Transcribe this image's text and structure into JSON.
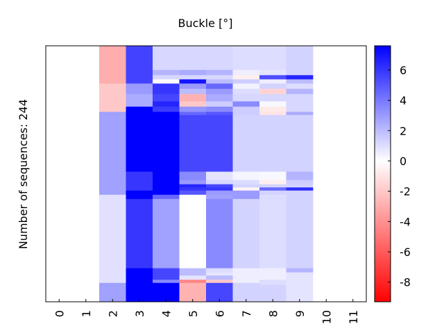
{
  "chart_data": {
    "type": "heatmap",
    "title": "Buckle [°]",
    "ylabel": "Number of sequences: 244",
    "xlabel": "",
    "x_ticks": [
      "0",
      "1",
      "2",
      "3",
      "4",
      "5",
      "6",
      "7",
      "8",
      "9",
      "10",
      "11"
    ],
    "colorbar": {
      "ticks": [
        6,
        4,
        2,
        0,
        -2,
        -4,
        -6,
        -8
      ],
      "tick_labels": [
        "6",
        "4",
        "2",
        "0",
        "-2",
        "-4",
        "-6",
        "-8"
      ],
      "vmin": -9.3,
      "vmax": 7.6,
      "cmap": "bwr",
      "low_color": "#ff0000",
      "mid_color": "#ffffff",
      "high_color": "#0000ff"
    },
    "row_labels": "not shown",
    "bands": [
      {
        "from": 0,
        "to": 244,
        "values": [
          null,
          null,
          0,
          0,
          0,
          0,
          0,
          0,
          0,
          0,
          null,
          null
        ]
      },
      {
        "from": 0,
        "to": 23,
        "values": [
          null,
          null,
          -3.0,
          5.6,
          1.2,
          1.2,
          1.2,
          1.0,
          1.0,
          1.3,
          null,
          null
        ]
      },
      {
        "from": 23,
        "to": 28,
        "values": [
          null,
          null,
          -3.0,
          5.6,
          2.2,
          2.5,
          2.2,
          0.5,
          0.8,
          1.3,
          null,
          null
        ]
      },
      {
        "from": 28,
        "to": 32,
        "values": [
          null,
          null,
          -3.0,
          5.6,
          1.2,
          1.2,
          1.2,
          -0.6,
          5.3,
          6.5,
          null,
          null
        ]
      },
      {
        "from": 32,
        "to": 36,
        "values": [
          null,
          null,
          -3.0,
          5.6,
          0.1,
          7.0,
          2.0,
          1.5,
          0.5,
          2.0,
          null,
          null
        ]
      },
      {
        "from": 36,
        "to": 41,
        "values": [
          null,
          null,
          -2.0,
          3.0,
          6.0,
          3.0,
          4.5,
          0.4,
          1.3,
          1.0,
          null,
          null
        ]
      },
      {
        "from": 41,
        "to": 46,
        "values": [
          null,
          null,
          -2.0,
          3.0,
          6.0,
          2.0,
          3.0,
          1.0,
          -1.6,
          2.2,
          null,
          null
        ]
      },
      {
        "from": 46,
        "to": 53,
        "values": [
          null,
          null,
          -2.0,
          2.5,
          5.5,
          -2.8,
          2.5,
          1.2,
          1.2,
          1.2,
          null,
          null
        ]
      },
      {
        "from": 53,
        "to": 58,
        "values": [
          null,
          null,
          -2.0,
          2.5,
          6.5,
          -2.0,
          1.5,
          3.5,
          0.2,
          1.2,
          null,
          null
        ]
      },
      {
        "from": 58,
        "to": 63,
        "values": [
          null,
          null,
          -2.0,
          7.6,
          5.8,
          3.2,
          3.5,
          1.5,
          -0.8,
          1.2,
          null,
          null
        ]
      },
      {
        "from": 63,
        "to": 66,
        "values": [
          null,
          null,
          2.8,
          7.6,
          7.6,
          4.5,
          5.0,
          1.5,
          -1.0,
          2.5,
          null,
          null
        ]
      },
      {
        "from": 66,
        "to": 75,
        "values": [
          null,
          null,
          2.8,
          7.6,
          7.6,
          5.5,
          5.5,
          1.3,
          1.3,
          1.3,
          null,
          null
        ]
      },
      {
        "from": 75,
        "to": 120,
        "values": [
          null,
          null,
          2.8,
          7.6,
          7.6,
          5.5,
          5.5,
          1.3,
          1.3,
          1.3,
          null,
          null
        ]
      },
      {
        "from": 120,
        "to": 128,
        "values": [
          null,
          null,
          2.8,
          6.0,
          7.6,
          3.5,
          0.8,
          0.3,
          0.2,
          2.2,
          null,
          null
        ]
      },
      {
        "from": 128,
        "to": 132,
        "values": [
          null,
          null,
          2.8,
          6.0,
          7.6,
          3.0,
          1.2,
          1.0,
          -0.6,
          1.5,
          null,
          null
        ]
      },
      {
        "from": 132,
        "to": 135,
        "values": [
          null,
          null,
          2.8,
          6.0,
          7.6,
          6.5,
          5.5,
          1.3,
          1.3,
          1.3,
          null,
          null
        ]
      },
      {
        "from": 135,
        "to": 138,
        "values": [
          null,
          null,
          2.8,
          6.0,
          7.6,
          6.0,
          6.0,
          -0.4,
          4.5,
          6.2,
          null,
          null
        ]
      },
      {
        "from": 138,
        "to": 142,
        "values": [
          null,
          null,
          2.8,
          7.6,
          7.6,
          5.0,
          3.0,
          3.0,
          1.3,
          1.3,
          null,
          null
        ]
      },
      {
        "from": 142,
        "to": 146,
        "values": [
          null,
          null,
          0.9,
          7.6,
          4.5,
          0.0,
          2.8,
          3.0,
          1.0,
          1.3,
          null,
          null
        ]
      },
      {
        "from": 146,
        "to": 168,
        "values": [
          null,
          null,
          0.9,
          6.0,
          2.8,
          0.0,
          3.5,
          1.3,
          1.0,
          1.3,
          null,
          null
        ]
      },
      {
        "from": 168,
        "to": 212,
        "values": [
          null,
          null,
          0.9,
          6.0,
          2.8,
          0.0,
          3.5,
          1.3,
          1.0,
          1.3,
          null,
          null
        ]
      },
      {
        "from": 212,
        "to": 216,
        "values": [
          null,
          null,
          0.9,
          7.6,
          5.5,
          2.0,
          1.0,
          0.5,
          0.5,
          2.2,
          null,
          null
        ]
      },
      {
        "from": 216,
        "to": 219,
        "values": [
          null,
          null,
          0.9,
          7.6,
          5.5,
          2.0,
          0.8,
          0.5,
          0.5,
          0.8,
          null,
          null
        ]
      },
      {
        "from": 219,
        "to": 223,
        "values": [
          null,
          null,
          0.9,
          7.6,
          5.5,
          0.8,
          2.0,
          0.5,
          0.5,
          0.8,
          null,
          null
        ]
      },
      {
        "from": 223,
        "to": 226,
        "values": [
          null,
          null,
          0.9,
          7.6,
          3.5,
          -4.5,
          -2.0,
          0.5,
          1.0,
          0.8,
          null,
          null
        ]
      },
      {
        "from": 226,
        "to": 228,
        "values": [
          null,
          null,
          2.8,
          7.6,
          7.6,
          -2.8,
          5.5,
          1.3,
          1.0,
          0.8,
          null,
          null
        ]
      },
      {
        "from": 228,
        "to": 244,
        "values": [
          null,
          null,
          2.8,
          7.6,
          7.6,
          -2.8,
          5.5,
          1.3,
          1.3,
          0.8,
          null,
          null
        ]
      }
    ]
  }
}
